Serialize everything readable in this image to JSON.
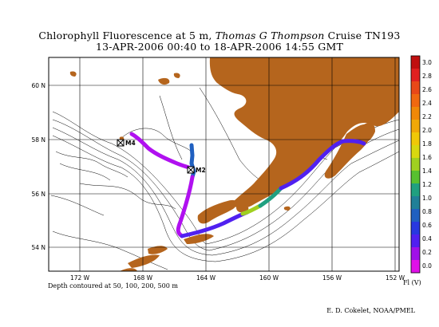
{
  "title": {
    "line1_prefix": "Chlorophyll Fluorescence at 5 m, ",
    "line1_vessel": "Thomas G  Thompson",
    "line1_suffix": " Cruise TN193",
    "line2": "13-APR-2006 00:40 to 18-APR-2006 14:55 GMT"
  },
  "axes": {
    "lat_labels": [
      "60 N",
      "58 N",
      "56 N",
      "54 N"
    ],
    "lon_labels": [
      "172 W",
      "168 W",
      "164 W",
      "160 W",
      "156 W",
      "152 W"
    ]
  },
  "stations": [
    {
      "name": "M4"
    },
    {
      "name": "M2"
    }
  ],
  "colorbar": {
    "ticks": [
      "3.0",
      "2.8",
      "2.6",
      "2.4",
      "2.2",
      "2.0",
      "1.8",
      "1.6",
      "1.4",
      "1.2",
      "1.0",
      "0.8",
      "0.6",
      "0.4",
      "0.2",
      "0.0"
    ],
    "colors": [
      "#c01010",
      "#e02020",
      "#e84818",
      "#f06810",
      "#f08808",
      "#f0a808",
      "#f0c808",
      "#d8d810",
      "#a0d020",
      "#58c030",
      "#20a080",
      "#208098",
      "#2060c0",
      "#2838e0",
      "#5020f0",
      "#a010e8",
      "#e010e8"
    ],
    "unit": "Fl (V)"
  },
  "footer": {
    "depth_note": "Depth contoured at 50, 100, 200, 500 m",
    "credit": "E. D. Cokelet, NOAA/PMEL"
  },
  "colors": {
    "land": "#b5651d",
    "track_main": "#b010f0",
    "track_low": "#e010f8"
  }
}
